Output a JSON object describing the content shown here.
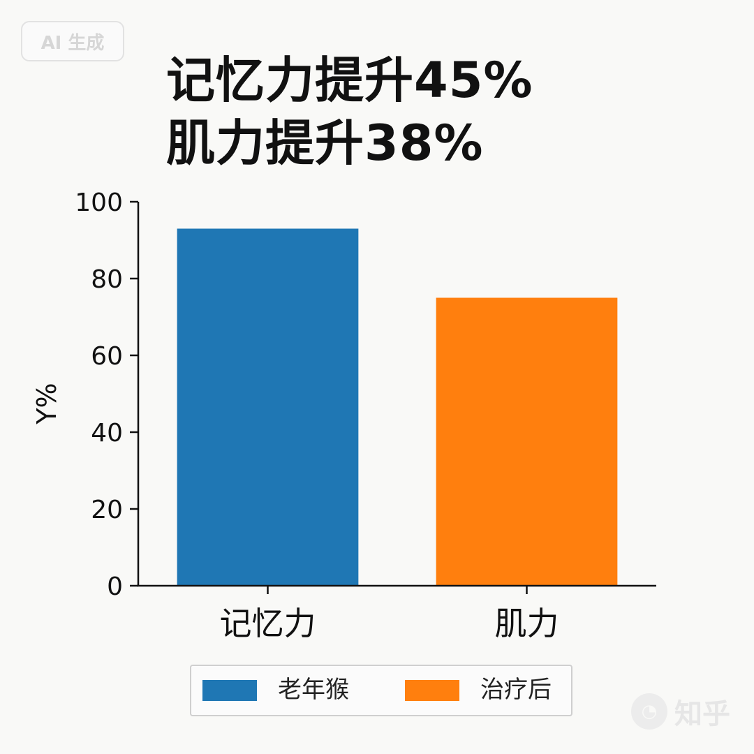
{
  "badge": {
    "text": "AI 生成"
  },
  "title_lines": [
    "记忆力提升45%",
    "肌力提升38%"
  ],
  "watermark": {
    "text": "知乎"
  },
  "chart_data": {
    "type": "bar",
    "categories": [
      "记忆力",
      "肌力"
    ],
    "series": [
      {
        "name": "老年猴",
        "values": [
          93,
          null
        ],
        "color": "#1f77b4"
      },
      {
        "name": "治疗后",
        "values": [
          null,
          75
        ],
        "color": "#ff7f0e"
      }
    ],
    "ylabel": "Y%",
    "xlabel": "",
    "ylim": [
      0,
      100
    ],
    "yticks": [
      "0",
      "20",
      "40",
      "60",
      "80",
      "100"
    ],
    "grid": false,
    "legend_position": "bottom-center"
  }
}
